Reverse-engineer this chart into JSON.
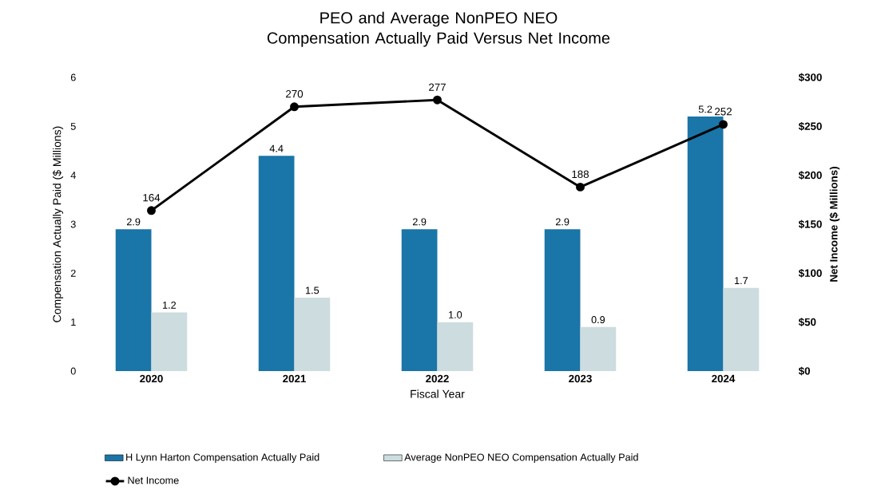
{
  "chart_data": {
    "type": "bar",
    "title": "PEO and Average NonPEO NEO Compensation Actually Paid Versus Net Income",
    "xlabel": "Fiscal Year",
    "ylabel": "Compensation Actually Paid ($ Millions)",
    "y2label": "Net Income ($ Millions)",
    "categories": [
      "2020",
      "2021",
      "2022",
      "2023",
      "2024"
    ],
    "series": [
      {
        "name": "H Lynn Harton Compensation Actually Paid",
        "color": "#1a75a8",
        "values": [
          2.9,
          4.4,
          2.9,
          2.9,
          5.2
        ],
        "value_labels": [
          "2.9",
          "4.4",
          "2.9",
          "2.9",
          "5.2"
        ]
      },
      {
        "name": "Average NonPEO NEO Compensation Actually Paid",
        "color": "#cddcdf",
        "values": [
          1.2,
          1.5,
          1.0,
          0.9,
          1.7
        ],
        "value_labels": [
          "1.2",
          "1.5",
          "1.0",
          "0.9",
          "1.7"
        ]
      },
      {
        "name": "Net Income",
        "type": "line",
        "axis": "y2",
        "color": "#000000",
        "marker": "circle",
        "values": [
          164,
          270,
          277,
          188,
          252
        ],
        "value_labels": [
          "164",
          "270",
          "277",
          "188",
          "252"
        ]
      }
    ],
    "ylim": [
      0,
      6
    ],
    "yticks": [
      0,
      1,
      2,
      3,
      4,
      5,
      6
    ],
    "y2lim": [
      0,
      300
    ],
    "y2ticks": [
      {
        "value": 0,
        "label": "$0"
      },
      {
        "value": 50,
        "label": "$50"
      },
      {
        "value": 100,
        "label": "$100"
      },
      {
        "value": 150,
        "label": "$150"
      },
      {
        "value": 200,
        "label": "$200"
      },
      {
        "value": 250,
        "label": "$250"
      },
      {
        "value": 300,
        "label": "$300"
      }
    ],
    "legend": "bottom"
  }
}
